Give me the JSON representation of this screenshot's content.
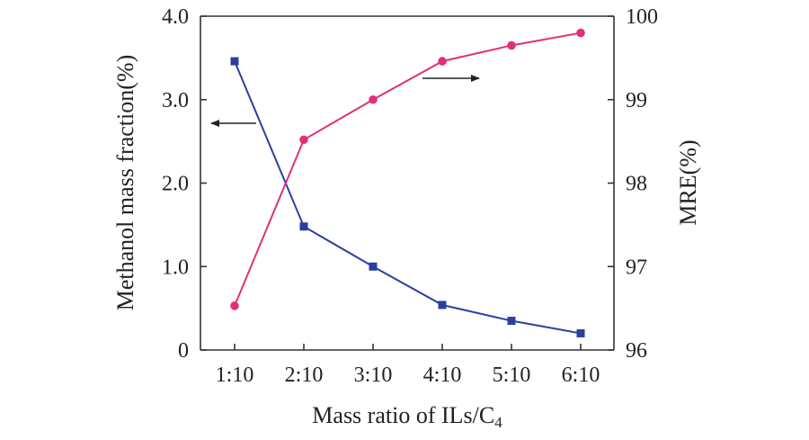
{
  "chart_data": {
    "type": "line",
    "title": "",
    "categories": [
      "1:10",
      "2:10",
      "3:10",
      "4:10",
      "5:10",
      "6:10"
    ],
    "xlabel": "Mass ratio of ILs/C",
    "xlabel_subscript": "4",
    "ylabel": "Methanol mass fraction(%)",
    "ylabel_right": "MRE(%)",
    "ylim": [
      0,
      4.0
    ],
    "ylim_right": [
      96,
      100
    ],
    "yticks": [
      "0",
      "1.0",
      "2.0",
      "3.0",
      "4.0"
    ],
    "yticks_right": [
      "96",
      "97",
      "98",
      "99",
      "100"
    ],
    "series": [
      {
        "name": "Methanol mass fraction",
        "axis": "left",
        "marker": "square",
        "color": "#2b3fa0",
        "values": [
          3.46,
          1.48,
          1.0,
          0.54,
          0.35,
          0.2
        ]
      },
      {
        "name": "MRE",
        "axis": "right",
        "marker": "circle",
        "color": "#e0307a",
        "values": [
          96.53,
          98.52,
          99.0,
          99.46,
          99.65,
          99.8
        ]
      }
    ],
    "annotations": [
      {
        "type": "arrow",
        "direction": "left",
        "points_to": "left-axis"
      },
      {
        "type": "arrow",
        "direction": "right",
        "points_to": "right-axis"
      }
    ]
  }
}
